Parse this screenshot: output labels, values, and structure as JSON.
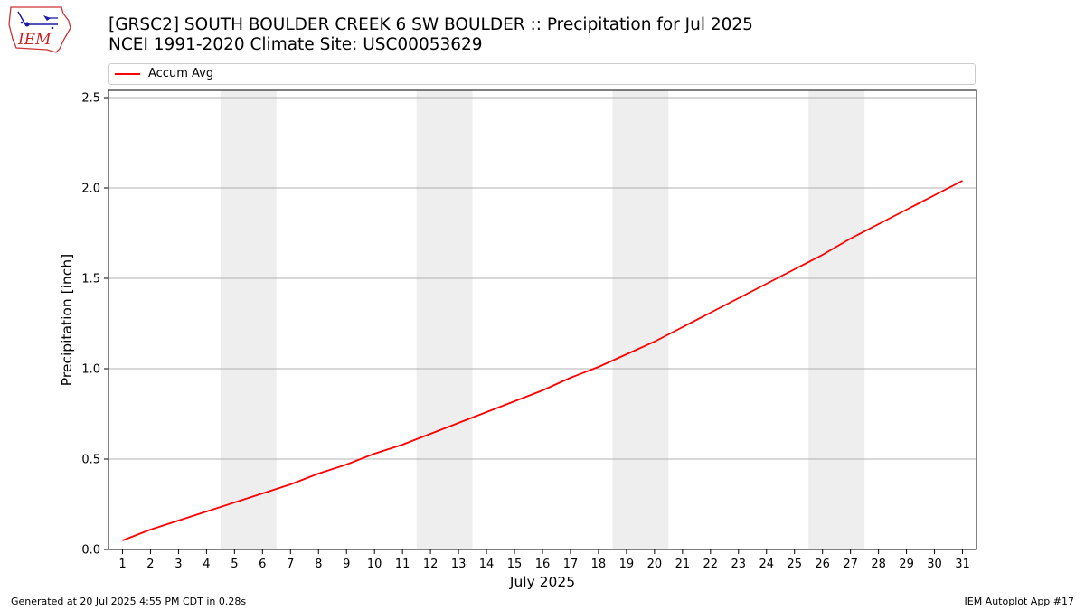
{
  "header": {
    "title_line1": "[GRSC2] SOUTH BOULDER CREEK 6 SW BOULDER :: Precipitation for Jul 2025",
    "title_line2": "NCEI 1991-2020 Climate Site: USC00053629"
  },
  "logo": {
    "text": "IEM",
    "icon": "iem-logo-icon"
  },
  "footer": {
    "left": "Generated at 20 Jul 2025 4:55 PM CDT in 0.28s",
    "right": "IEM Autoplot App #17"
  },
  "colors": {
    "line": "#ff0000",
    "weekend_band": "#eeeeee",
    "grid": "#b0b0b0"
  },
  "chart_data": {
    "type": "line",
    "xlabel": "July 2025",
    "ylabel": "Precipitation [inch]",
    "x": [
      1,
      2,
      3,
      4,
      5,
      6,
      7,
      8,
      9,
      10,
      11,
      12,
      13,
      14,
      15,
      16,
      17,
      18,
      19,
      20,
      21,
      22,
      23,
      24,
      25,
      26,
      27,
      28,
      29,
      30,
      31
    ],
    "xticks": [
      "1",
      "2",
      "3",
      "4",
      "5",
      "6",
      "7",
      "8",
      "9",
      "10",
      "11",
      "12",
      "13",
      "14",
      "15",
      "16",
      "17",
      "18",
      "19",
      "20",
      "21",
      "22",
      "23",
      "24",
      "25",
      "26",
      "27",
      "28",
      "29",
      "30",
      "31"
    ],
    "ylim": [
      0,
      2.54
    ],
    "yticks": [
      "0.0",
      "0.5",
      "1.0",
      "1.5",
      "2.0",
      "2.5"
    ],
    "grid": "horizontal",
    "legend_position": "top",
    "series": [
      {
        "name": "Accum Avg",
        "values": [
          0.05,
          0.11,
          0.16,
          0.21,
          0.26,
          0.31,
          0.36,
          0.42,
          0.47,
          0.53,
          0.58,
          0.64,
          0.7,
          0.76,
          0.82,
          0.88,
          0.95,
          1.01,
          1.08,
          1.15,
          1.23,
          1.31,
          1.39,
          1.47,
          1.55,
          1.63,
          1.72,
          1.8,
          1.88,
          1.96,
          2.04
        ]
      }
    ],
    "weekend_bands": [
      [
        5,
        6
      ],
      [
        12,
        13
      ],
      [
        19,
        20
      ],
      [
        26,
        27
      ]
    ]
  }
}
